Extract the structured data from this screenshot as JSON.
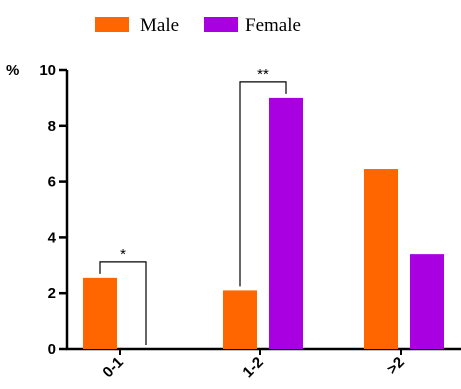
{
  "chart_data": {
    "type": "bar",
    "title": "",
    "xlabel": "",
    "ylabel": "%",
    "categories": [
      "0-1",
      "1-2",
      ">2"
    ],
    "series": [
      {
        "name": "Male",
        "color": "#ff6600",
        "values": [
          2.55,
          2.1,
          6.45
        ]
      },
      {
        "name": "Female",
        "color": "#a800e0",
        "values": [
          0,
          9.0,
          3.4
        ]
      }
    ],
    "ylim": [
      0,
      10
    ],
    "yticks": [
      "0",
      "2",
      "4",
      "6",
      "8",
      "10"
    ],
    "legend_position": "top",
    "grid": false,
    "significance": [
      {
        "category_index": 0,
        "label": "*"
      },
      {
        "category_index": 1,
        "label": "**"
      }
    ]
  }
}
